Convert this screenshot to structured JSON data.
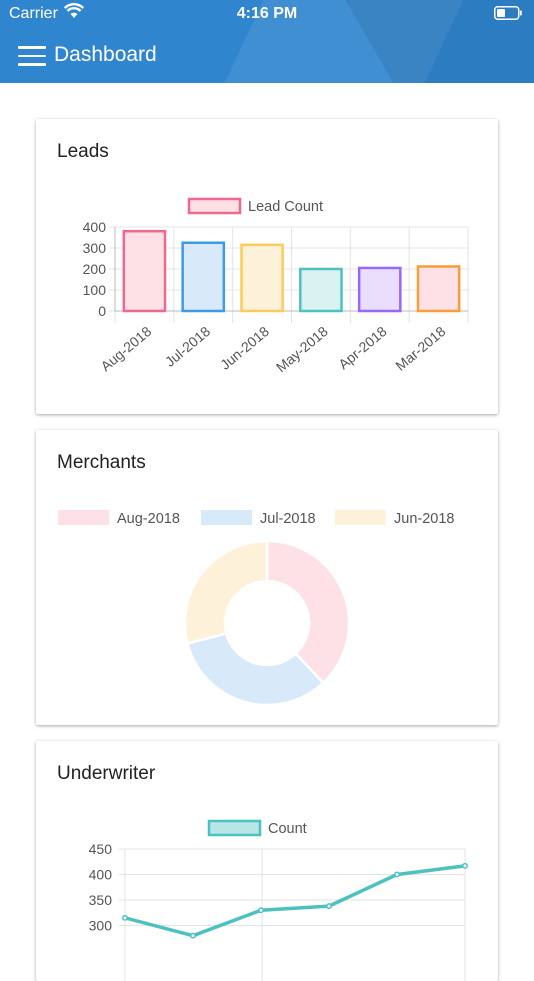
{
  "status_bar": {
    "carrier": "Carrier",
    "time": "4:16 PM"
  },
  "header": {
    "title": "Dashboard"
  },
  "cards": {
    "leads": {
      "title": "Leads"
    },
    "merchants": {
      "title": "Merchants"
    },
    "underwriter": {
      "title": "Underwriter"
    }
  },
  "chart_data": [
    {
      "type": "bar",
      "title": "Leads",
      "categories": [
        "Aug-2018",
        "Jul-2018",
        "Jun-2018",
        "May-2018",
        "Apr-2018",
        "Mar-2018"
      ],
      "series": [
        {
          "name": "Lead Count",
          "values": [
            380,
            325,
            315,
            200,
            205,
            212
          ]
        }
      ],
      "bar_fill_colors": [
        "#fde1e7",
        "#d8eafa",
        "#fdf2d9",
        "#d9f2f2",
        "#e9dffd",
        "#fde1e7"
      ],
      "bar_border_colors": [
        "#f2678d",
        "#3d9be6",
        "#fbcc5a",
        "#4dc0c0",
        "#9966ff",
        "#f79d3a"
      ],
      "legend_color": "#f2678d",
      "yticks": [
        0,
        100,
        200,
        300,
        400
      ],
      "ylim": [
        0,
        400
      ],
      "grid": true,
      "legend_position": "top"
    },
    {
      "type": "pie",
      "title": "Merchants",
      "categories": [
        "Aug-2018",
        "Jul-2018",
        "Jun-2018"
      ],
      "values": [
        38,
        33,
        29
      ],
      "colors": [
        "#fde1e7",
        "#d8eafa",
        "#fdf2d9"
      ],
      "legend_position": "top"
    },
    {
      "type": "line",
      "title": "Underwriter",
      "series": [
        {
          "name": "Count",
          "values": [
            315,
            280,
            330,
            338,
            400,
            417
          ]
        }
      ],
      "color": "#4dc0c0",
      "yticks": [
        300,
        350,
        400,
        450
      ],
      "ylim": [
        250,
        450
      ],
      "grid": true,
      "legend_position": "top"
    }
  ]
}
